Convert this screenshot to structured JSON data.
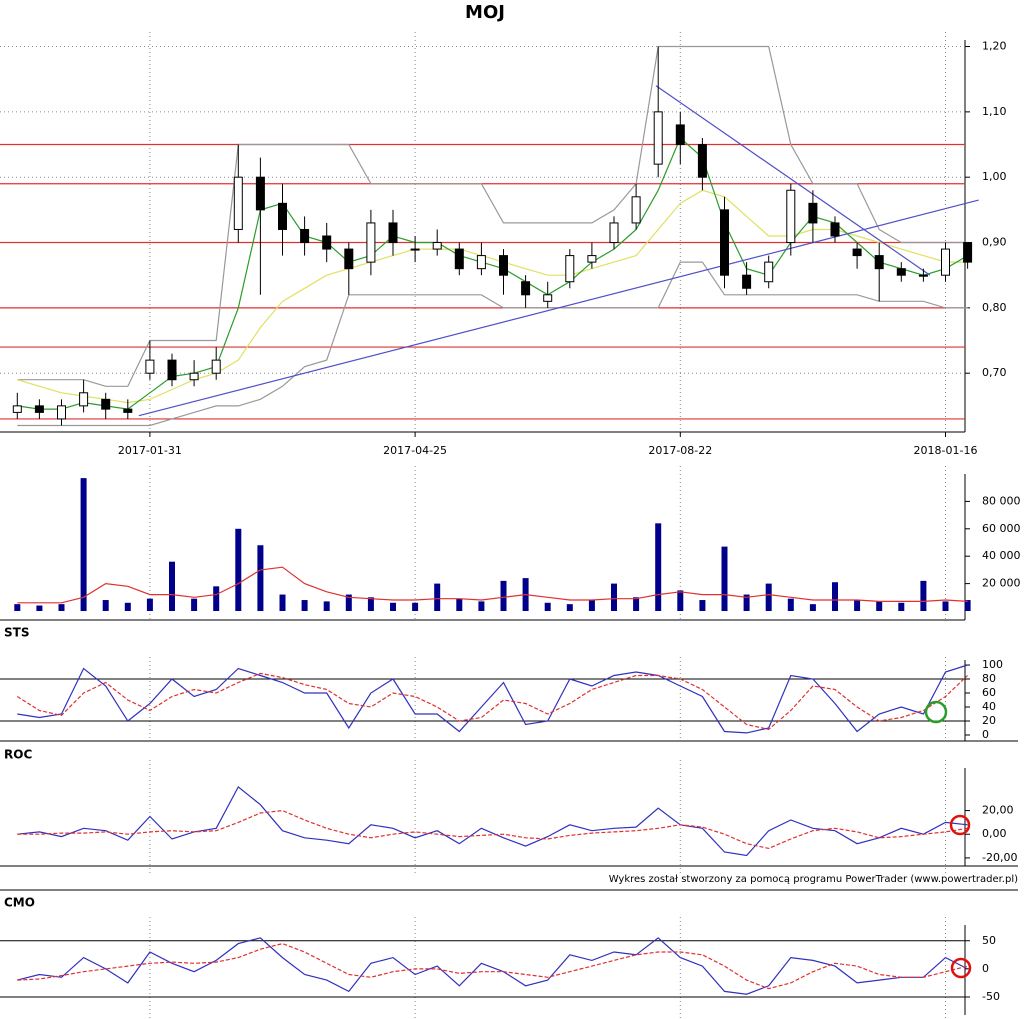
{
  "chart_data": [
    {
      "type": "candlestick",
      "title": "MOJ",
      "categories": [
        null,
        null,
        null,
        null,
        null,
        null,
        "2017-01-31",
        null,
        null,
        null,
        null,
        null,
        null,
        null,
        null,
        null,
        null,
        null,
        "2017-04-25",
        null,
        null,
        null,
        null,
        null,
        null,
        null,
        null,
        null,
        null,
        null,
        "2017-08-22",
        null,
        null,
        null,
        null,
        null,
        null,
        null,
        null,
        null,
        null,
        null,
        "2018-01-16",
        null
      ],
      "open": [
        0.64,
        0.65,
        0.63,
        0.65,
        0.66,
        0.645,
        0.7,
        0.72,
        0.69,
        0.7,
        0.92,
        1.0,
        0.96,
        0.92,
        0.91,
        0.89,
        0.87,
        0.93,
        0.89,
        0.89,
        0.89,
        0.86,
        0.88,
        0.84,
        0.81,
        0.84,
        0.87,
        0.9,
        0.93,
        1.02,
        1.08,
        1.05,
        0.95,
        0.85,
        0.84,
        0.9,
        0.96,
        0.93,
        0.89,
        0.88,
        0.86,
        0.85,
        0.85,
        0.9
      ],
      "high": [
        0.67,
        0.66,
        0.66,
        0.69,
        0.67,
        0.66,
        0.75,
        0.73,
        0.72,
        0.74,
        1.05,
        1.03,
        0.99,
        0.94,
        0.93,
        0.9,
        0.95,
        0.95,
        0.91,
        0.92,
        0.9,
        0.9,
        0.89,
        0.85,
        0.84,
        0.89,
        0.9,
        0.94,
        0.99,
        1.2,
        1.1,
        1.06,
        0.97,
        0.87,
        0.88,
        0.99,
        0.98,
        0.94,
        0.9,
        0.9,
        0.87,
        0.86,
        0.9,
        0.9
      ],
      "low": [
        0.63,
        0.63,
        0.62,
        0.64,
        0.63,
        0.63,
        0.69,
        0.68,
        0.68,
        0.69,
        0.9,
        0.82,
        0.88,
        0.88,
        0.87,
        0.82,
        0.85,
        0.88,
        0.87,
        0.88,
        0.85,
        0.85,
        0.82,
        0.8,
        0.8,
        0.83,
        0.86,
        0.89,
        0.92,
        1.0,
        1.02,
        0.98,
        0.83,
        0.82,
        0.83,
        0.88,
        0.9,
        0.9,
        0.86,
        0.81,
        0.84,
        0.84,
        0.84,
        0.86
      ],
      "close": [
        0.65,
        0.64,
        0.65,
        0.67,
        0.645,
        0.64,
        0.72,
        0.69,
        0.7,
        0.72,
        1.0,
        0.95,
        0.92,
        0.9,
        0.89,
        0.86,
        0.93,
        0.9,
        0.89,
        0.9,
        0.86,
        0.88,
        0.85,
        0.82,
        0.82,
        0.88,
        0.88,
        0.93,
        0.97,
        1.1,
        1.05,
        1.0,
        0.85,
        0.83,
        0.87,
        0.98,
        0.93,
        0.91,
        0.88,
        0.86,
        0.85,
        0.85,
        0.89,
        0.87
      ],
      "overlays": [
        {
          "color": "#999999",
          "values": [
            0.69,
            0.69,
            0.69,
            0.69,
            0.68,
            0.68,
            0.75,
            0.75,
            0.75,
            0.75,
            1.05,
            1.05,
            1.05,
            1.05,
            1.05,
            1.05,
            0.99,
            0.99,
            0.99,
            0.99,
            0.99,
            0.99,
            0.93,
            0.93,
            0.93,
            0.93,
            0.93,
            0.95,
            0.99,
            1.2,
            1.2,
            1.2,
            1.2,
            1.2,
            1.2,
            1.05,
            0.99,
            0.99,
            0.99,
            0.92,
            0.9,
            0.9,
            0.9,
            0.9
          ]
        },
        {
          "color": "#999999",
          "values": [
            0.62,
            0.62,
            0.62,
            0.62,
            0.62,
            0.62,
            0.62,
            0.63,
            0.64,
            0.65,
            0.65,
            0.66,
            0.68,
            0.71,
            0.72,
            0.82,
            0.82,
            0.82,
            0.82,
            0.82,
            0.82,
            0.82,
            0.8,
            0.8,
            0.8,
            0.8,
            0.8,
            0.8,
            0.8,
            0.8,
            0.87,
            0.87,
            0.82,
            0.82,
            0.82,
            0.82,
            0.82,
            0.82,
            0.82,
            0.81,
            0.81,
            0.81,
            0.8,
            0.8
          ]
        },
        {
          "color": "#e0e060",
          "values": [
            0.69,
            0.68,
            0.67,
            0.665,
            0.66,
            0.655,
            0.66,
            0.675,
            0.69,
            0.7,
            0.72,
            0.77,
            0.81,
            0.83,
            0.85,
            0.86,
            0.87,
            0.88,
            0.89,
            0.89,
            0.89,
            0.88,
            0.87,
            0.86,
            0.85,
            0.85,
            0.86,
            0.87,
            0.88,
            0.92,
            0.96,
            0.98,
            0.97,
            0.94,
            0.91,
            0.91,
            0.92,
            0.92,
            0.91,
            0.9,
            0.89,
            0.88,
            0.87,
            0.87
          ]
        },
        {
          "color": "#2a9d2a",
          "values": [
            0.65,
            0.645,
            0.645,
            0.655,
            0.65,
            0.645,
            0.67,
            0.695,
            0.7,
            0.71,
            0.8,
            0.95,
            0.96,
            0.91,
            0.9,
            0.87,
            0.88,
            0.91,
            0.9,
            0.9,
            0.88,
            0.87,
            0.86,
            0.84,
            0.82,
            0.84,
            0.87,
            0.89,
            0.92,
            0.98,
            1.06,
            1.03,
            0.93,
            0.86,
            0.85,
            0.9,
            0.94,
            0.93,
            0.9,
            0.87,
            0.86,
            0.85,
            0.86,
            0.88
          ]
        }
      ],
      "levels": [
        1.05,
        0.99,
        0.9,
        0.8,
        0.74,
        0.63
      ],
      "level_color": "#e03030",
      "trend_lines": [
        {
          "x": [
            5.5,
            43.5
          ],
          "values": [
            0.635,
            0.965
          ],
          "color": "#5050c8"
        },
        {
          "x": [
            28.9,
            41.3
          ],
          "values": [
            1.14,
            0.85
          ],
          "color": "#5050c8"
        }
      ],
      "ylim": [
        0.61,
        1.21
      ],
      "yticks": [
        {
          "value": 0.7,
          "label": "0,70"
        },
        {
          "value": 0.8,
          "label": "0,80"
        },
        {
          "value": 0.9,
          "label": "0,90"
        },
        {
          "value": 1.0,
          "label": "1,00"
        },
        {
          "value": 1.1,
          "label": "1,10"
        },
        {
          "value": 1.2,
          "label": "1,20"
        }
      ],
      "grid": true
    },
    {
      "type": "bar",
      "color": "#00008b",
      "values": [
        5000,
        4000,
        5000,
        97000,
        8000,
        6000,
        9000,
        36000,
        9000,
        18000,
        60000,
        48000,
        12000,
        8000,
        7000,
        12000,
        10000,
        6000,
        6000,
        20000,
        9000,
        7000,
        22000,
        24000,
        6000,
        5000,
        8000,
        20000,
        10000,
        64000,
        15000,
        8000,
        47000,
        12000,
        20000,
        9000,
        5000,
        21000,
        8000,
        7000,
        6000,
        22000,
        7000,
        8000
      ],
      "average": {
        "color": "#e03030",
        "values": [
          6000,
          6000,
          6000,
          10000,
          20000,
          18000,
          12000,
          12000,
          10000,
          12000,
          20000,
          30000,
          32000,
          20000,
          14000,
          10000,
          9000,
          8000,
          8000,
          9000,
          9000,
          8000,
          10000,
          12000,
          10000,
          8000,
          8000,
          9000,
          9000,
          12000,
          14000,
          12000,
          12000,
          10000,
          12000,
          10000,
          8000,
          8000,
          8000,
          7000,
          7000,
          7000,
          8000,
          7000
        ]
      },
      "ylim": [
        0,
        100000
      ],
      "yticks": [
        {
          "value": 20000,
          "label": "20 000"
        },
        {
          "value": 40000,
          "label": "40 000"
        },
        {
          "value": 60000,
          "label": "60 000"
        },
        {
          "value": 80000,
          "label": "80 000"
        }
      ]
    },
    {
      "type": "line",
      "title": "STS",
      "series": [
        {
          "color": "#3030c0",
          "style": "solid",
          "values": [
            30,
            25,
            30,
            95,
            70,
            20,
            45,
            80,
            55,
            65,
            95,
            85,
            75,
            60,
            60,
            10,
            60,
            80,
            30,
            30,
            5,
            40,
            75,
            15,
            20,
            80,
            70,
            85,
            90,
            85,
            70,
            55,
            5,
            3,
            10,
            85,
            80,
            45,
            5,
            30,
            40,
            30,
            90,
            100
          ]
        },
        {
          "color": "#e03030",
          "style": "dashed",
          "values": [
            55,
            35,
            28,
            60,
            75,
            50,
            35,
            55,
            65,
            60,
            75,
            88,
            82,
            72,
            65,
            45,
            40,
            60,
            55,
            40,
            20,
            25,
            50,
            45,
            30,
            45,
            65,
            75,
            85,
            85,
            80,
            65,
            40,
            15,
            8,
            35,
            70,
            65,
            40,
            20,
            25,
            35,
            55,
            85
          ]
        }
      ],
      "ref_lines": [
        20,
        80
      ],
      "ylim": [
        0,
        100
      ],
      "yticks": [
        0,
        20,
        40,
        60,
        80,
        100
      ]
    },
    {
      "type": "line",
      "title": "ROC",
      "series": [
        {
          "color": "#3030c0",
          "style": "solid",
          "values": [
            0,
            2,
            -2,
            5,
            3,
            -5,
            15,
            -4,
            2,
            5,
            40,
            25,
            3,
            -3,
            -5,
            -8,
            8,
            5,
            -3,
            3,
            -8,
            5,
            -3,
            -10,
            -2,
            8,
            3,
            5,
            6,
            22,
            8,
            5,
            -15,
            -18,
            3,
            12,
            5,
            3,
            -8,
            -3,
            5,
            0,
            10,
            8
          ]
        },
        {
          "color": "#e03030",
          "style": "dashed",
          "values": [
            0,
            0,
            1,
            1,
            2,
            0,
            2,
            3,
            2,
            3,
            10,
            18,
            20,
            12,
            5,
            0,
            -3,
            0,
            2,
            0,
            -2,
            -1,
            0,
            -3,
            -4,
            -1,
            1,
            2,
            3,
            5,
            8,
            6,
            0,
            -8,
            -12,
            -4,
            3,
            5,
            2,
            -3,
            -2,
            0,
            2,
            5
          ]
        }
      ],
      "ref_lines": [],
      "ylim": [
        -26,
        56
      ],
      "yticks": [
        {
          "value": -20,
          "label": "-20,00"
        },
        {
          "value": 0,
          "label": "0,00"
        },
        {
          "value": 20,
          "label": "20,00"
        }
      ]
    },
    {
      "type": "line",
      "title": "CMO",
      "series": [
        {
          "color": "#3030c0",
          "style": "solid",
          "values": [
            -20,
            -10,
            -15,
            20,
            0,
            -25,
            30,
            10,
            -5,
            15,
            45,
            55,
            20,
            -10,
            -20,
            -40,
            10,
            20,
            -10,
            5,
            -30,
            10,
            -5,
            -30,
            -20,
            25,
            15,
            30,
            25,
            55,
            20,
            5,
            -40,
            -45,
            -30,
            20,
            15,
            5,
            -25,
            -20,
            -15,
            -15,
            20,
            0
          ]
        },
        {
          "color": "#e03030",
          "style": "dashed",
          "values": [
            -20,
            -18,
            -12,
            -5,
            0,
            5,
            10,
            12,
            10,
            12,
            20,
            35,
            45,
            30,
            10,
            -10,
            -15,
            -5,
            0,
            0,
            -8,
            -5,
            -5,
            -10,
            -15,
            -5,
            5,
            15,
            25,
            30,
            30,
            25,
            5,
            -20,
            -35,
            -25,
            -5,
            10,
            5,
            -10,
            -15,
            -15,
            -5,
            5
          ]
        }
      ],
      "ref_lines": [
        -50,
        50
      ],
      "ylim": [
        -82,
        78
      ],
      "yticks": [
        -50,
        0,
        50
      ]
    }
  ],
  "footer": "Wykres został stworzony za pomocą programu PowerTrader (www.powertrader.pl)"
}
